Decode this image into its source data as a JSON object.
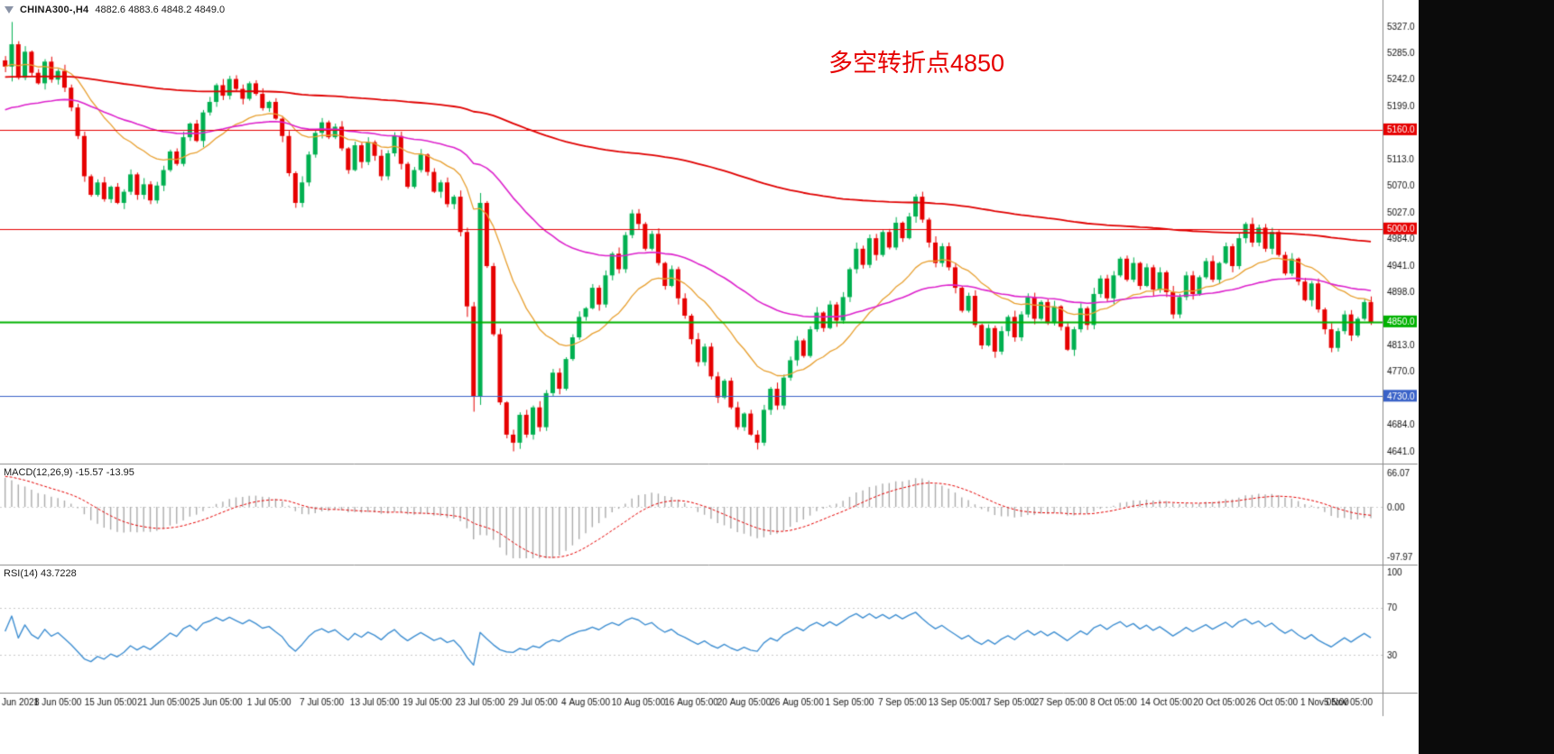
{
  "header": {
    "symbol": "CHINA300-,H4",
    "ohlc": "4882.6 4883.6 4848.2 4849.0"
  },
  "annotation": {
    "text": "多空转折点4850",
    "color": "#e60000"
  },
  "panels": {
    "macd": {
      "label": "MACD(12,26,9) -15.57 -13.95",
      "params": [
        12,
        26,
        9
      ],
      "current_values": [
        "-15.57",
        "-13.95"
      ],
      "y_labels": [
        "66.07",
        "0.00",
        "-97.97"
      ],
      "y_label_values": [
        66.07,
        0,
        -97.97
      ],
      "histogram_color": "#ababab",
      "signal_color": "#e60000"
    },
    "rsi": {
      "label": "RSI(14) 43.7228",
      "period": 14,
      "current_value": "43.7228",
      "y_labels": [
        "100",
        "70",
        "30"
      ],
      "y_label_values": [
        100,
        70,
        30
      ],
      "levels": [
        70,
        30
      ],
      "line_color": "#3f8fd2",
      "level_color": "#c9c9c9"
    }
  },
  "chart_data": {
    "type": "candlestick",
    "title": "CHINA300- H4",
    "timeframe": "H4",
    "x_labels": [
      "Jun 2021",
      "8 Jun 05:00",
      "15 Jun 05:00",
      "21 Jun 05:00",
      "25 Jun 05:00",
      "1 Jul 05:00",
      "7 Jul 05:00",
      "13 Jul 05:00",
      "19 Jul 05:00",
      "23 Jul 05:00",
      "29 Jul 05:00",
      "4 Aug 05:00",
      "10 Aug 05:00",
      "16 Aug 05:00",
      "20 Aug 05:00",
      "26 Aug 05:00",
      "1 Sep 05:00",
      "7 Sep 05:00",
      "13 Sep 05:00",
      "17 Sep 05:00",
      "27 Sep 05:00",
      "8 Oct 05:00",
      "14 Oct 05:00",
      "20 Oct 05:00",
      "26 Oct 05:00",
      "1 Nov 05:00",
      "5 Nov 05:00"
    ],
    "candles_per_label": 8,
    "y_tick_values": [
      5327,
      5285,
      5242,
      5199,
      5113,
      5070,
      5027,
      4984,
      4941,
      4898,
      4813,
      4770,
      4684,
      4641
    ],
    "y_tick_decimals": 1,
    "price_range": [
      4630,
      5352
    ],
    "up_color": "#00b050",
    "down_color": "#e60000",
    "closes": [
      5262,
      5298,
      5244,
      5286,
      5252,
      5235,
      5270,
      5241,
      5255,
      5228,
      5196,
      5150,
      5085,
      5055,
      5075,
      5048,
      5068,
      5042,
      5060,
      5088,
      5055,
      5072,
      5046,
      5070,
      5095,
      5125,
      5105,
      5148,
      5170,
      5142,
      5188,
      5205,
      5232,
      5215,
      5242,
      5226,
      5210,
      5235,
      5218,
      5195,
      5205,
      5178,
      5150,
      5090,
      5042,
      5075,
      5120,
      5155,
      5172,
      5148,
      5165,
      5130,
      5095,
      5135,
      5108,
      5140,
      5118,
      5085,
      5122,
      5150,
      5105,
      5068,
      5095,
      5120,
      5092,
      5060,
      5075,
      5040,
      5052,
      4995,
      4875,
      4730,
      5042,
      4940,
      4830,
      4720,
      4668,
      4655,
      4700,
      4668,
      4712,
      4680,
      4735,
      4768,
      4742,
      4790,
      4825,
      4858,
      4872,
      4905,
      4878,
      4925,
      4960,
      4935,
      4990,
      5025,
      5008,
      4968,
      4992,
      4945,
      4908,
      4935,
      4888,
      4860,
      4822,
      4785,
      4810,
      4762,
      4728,
      4755,
      4712,
      4680,
      4702,
      4668,
      4655,
      4708,
      4742,
      4715,
      4760,
      4788,
      4820,
      4795,
      4838,
      4865,
      4840,
      4878,
      4852,
      4890,
      4935,
      4968,
      4942,
      4985,
      4958,
      4995,
      4970,
      5010,
      4985,
      5020,
      5052,
      5015,
      4978,
      4945,
      4972,
      4938,
      4905,
      4868,
      4892,
      4845,
      4812,
      4840,
      4802,
      4835,
      4858,
      4825,
      4862,
      4890,
      4855,
      4882,
      4848,
      4875,
      4842,
      4805,
      4838,
      4872,
      4845,
      4895,
      4920,
      4888,
      4925,
      4952,
      4918,
      4945,
      4908,
      4938,
      4902,
      4930,
      4898,
      4862,
      4890,
      4925,
      4895,
      4922,
      4948,
      4918,
      4945,
      4972,
      4940,
      4985,
      5008,
      4978,
      5002,
      4968,
      4995,
      4958,
      4928,
      4952,
      4915,
      4885,
      4912,
      4870,
      4838,
      4808,
      4835,
      4862,
      4828,
      4855,
      4882,
      4849
    ],
    "overrides": {
      "1": [
        5262,
        5334,
        5238,
        5298
      ],
      "70": [
        4995,
        5002,
        4858,
        4875
      ],
      "71": [
        4875,
        4882,
        4705,
        4730
      ],
      "72": [
        4730,
        5058,
        4716,
        5042
      ],
      "77": [
        4668,
        4676,
        4641,
        4655
      ],
      "114": [
        4668,
        4675,
        4644,
        4655
      ]
    },
    "wick_pattern": [
      7,
      3,
      5,
      9,
      2,
      6,
      4,
      8,
      3,
      10,
      5,
      6
    ],
    "horizontal_lines": [
      {
        "price": 5160,
        "color": "#e60000",
        "width": 1
      },
      {
        "price": 5000,
        "color": "#e60000",
        "width": 1
      },
      {
        "price": 4850,
        "color": "#00b200",
        "width": 2
      },
      {
        "price": 4730,
        "color": "#3a62c8",
        "width": 1
      }
    ],
    "moving_averages": [
      {
        "name": "ma-fast-orange",
        "color": "#e8a030",
        "alpha": 0.1,
        "seed": 5262,
        "width": 1.3
      },
      {
        "name": "ma-medium-magenta",
        "color": "#dd22cc",
        "alpha": 0.033,
        "seed": 5190,
        "width": 1.6
      },
      {
        "name": "ma-slow-red",
        "color": "#e00000",
        "alpha": 0.0085,
        "seed": 5245,
        "width": 1.8
      }
    ]
  }
}
